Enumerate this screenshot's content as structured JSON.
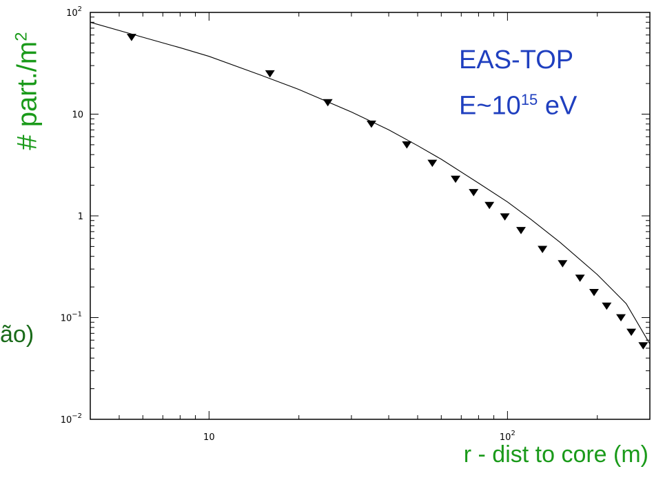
{
  "chart_data": {
    "type": "scatter",
    "xscale": "log",
    "yscale": "log",
    "xlim": [
      4,
      300
    ],
    "ylim": [
      0.01,
      100
    ],
    "xlabel": "r - dist to core (m)",
    "ylabel_main": "# part./m",
    "ylabel_sup": "2",
    "fragment": "ão)",
    "annotation": {
      "line1": "EAS-TOP",
      "line2_prefix": "E~10",
      "line2_sup": "15",
      "line2_suffix": " eV",
      "color": "#1f3fbf"
    },
    "x_ticks": [
      {
        "value": 10,
        "base": "10",
        "exp": ""
      },
      {
        "value": 100,
        "base": "10",
        "exp": "2"
      }
    ],
    "y_ticks": [
      {
        "value": 100,
        "base": "10",
        "exp": "2"
      },
      {
        "value": 10,
        "base": "10",
        "exp": ""
      },
      {
        "value": 1,
        "base": "1",
        "exp": ""
      },
      {
        "value": 0.1,
        "base": "10",
        "exp": "−1"
      },
      {
        "value": 0.01,
        "base": "10",
        "exp": "−2"
      }
    ],
    "data_points": {
      "x": [
        5.5,
        16,
        25,
        35,
        46,
        56,
        67,
        77,
        87,
        98,
        111,
        131,
        153,
        175,
        195,
        215,
        240,
        260,
        285
      ],
      "y": [
        57,
        25,
        13,
        8,
        5,
        3.3,
        2.3,
        1.7,
        1.27,
        0.98,
        0.72,
        0.47,
        0.34,
        0.245,
        0.177,
        0.13,
        0.1,
        0.072,
        0.053
      ]
    },
    "fit_curve": {
      "x": [
        4,
        6,
        8,
        10,
        15,
        20,
        30,
        40,
        50,
        60,
        80,
        100,
        120,
        150,
        200,
        250,
        300
      ],
      "y": [
        80,
        57,
        45,
        37,
        24,
        17.5,
        10.5,
        7.0,
        4.9,
        3.6,
        2.1,
        1.37,
        0.92,
        0.55,
        0.265,
        0.137,
        0.055
      ]
    },
    "label_color": "#1a9a1a"
  }
}
